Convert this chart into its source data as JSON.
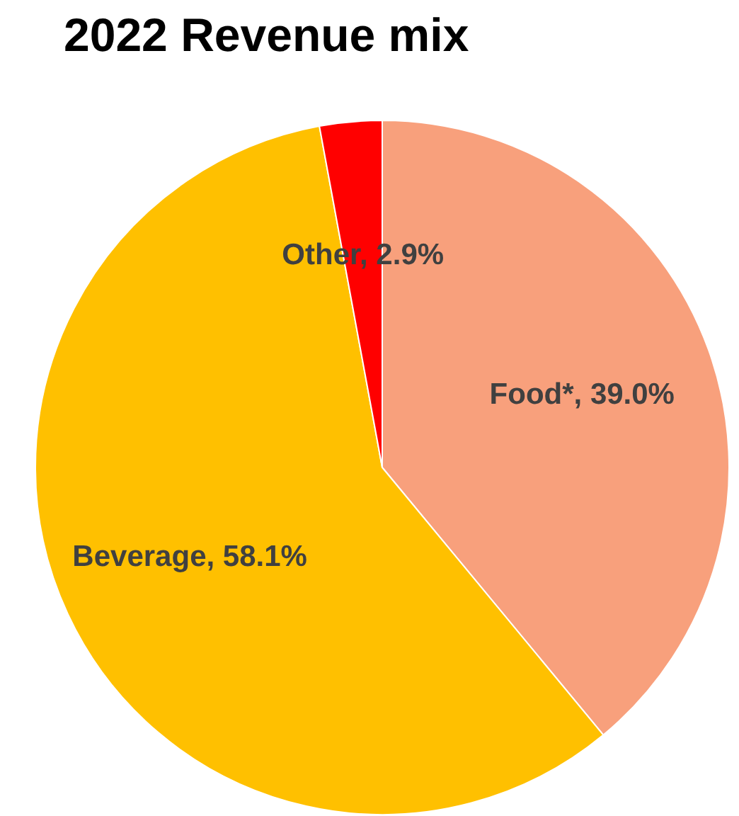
{
  "chart_data": {
    "type": "pie",
    "title": "2022 Revenue mix",
    "categories": [
      "Food*",
      "Beverage",
      "Other"
    ],
    "values": [
      39.0,
      58.1,
      2.9
    ],
    "colors": [
      "#f8a07c",
      "#ffc000",
      "#ff0000"
    ],
    "value_labels": [
      "39.0%",
      "58.1%",
      "2.9%"
    ]
  }
}
